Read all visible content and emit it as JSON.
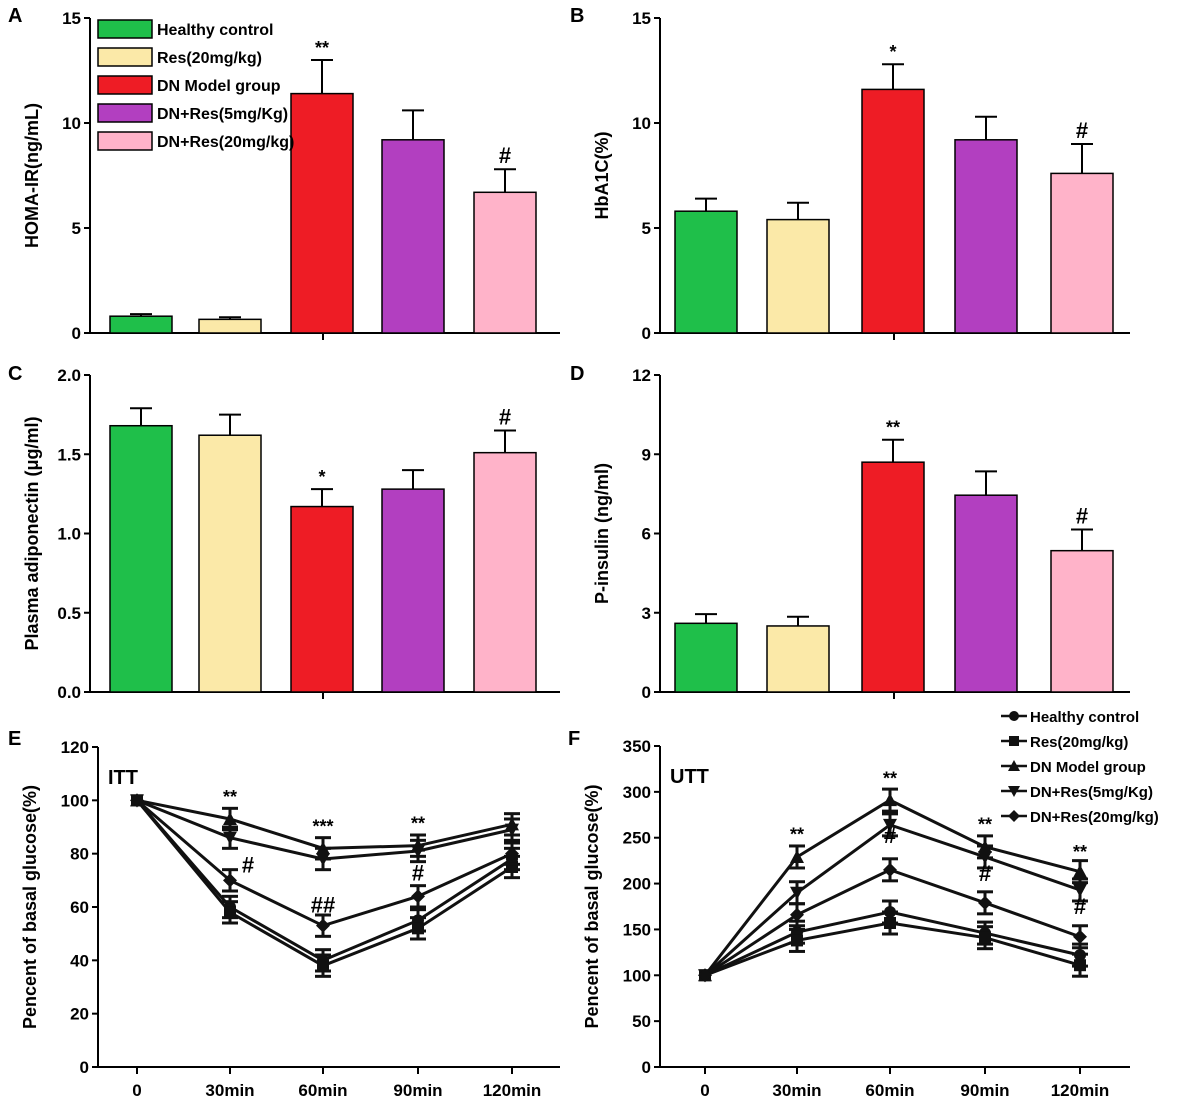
{
  "colors": {
    "healthy": "#1fbf4a",
    "res": "#fbe9a8",
    "model": "#ee1c25",
    "dn5": "#b23fc0",
    "dn20": "#ffb3c9"
  },
  "chart_data": [
    {
      "panel": "A",
      "type": "bar",
      "ylabel": "HOMA-IR(ng/mL)",
      "ylim": [
        0,
        15
      ],
      "yticks": [
        0,
        5,
        10,
        15
      ],
      "categories": [
        "Healthy control",
        "Res(20mg/kg)",
        "DN Model group",
        "DN+Res(5mg/Kg)",
        "DN+Res(20mg/kg)"
      ],
      "values": [
        0.8,
        0.65,
        11.4,
        9.2,
        6.7
      ],
      "errors": [
        0.1,
        0.1,
        1.6,
        1.4,
        1.1
      ],
      "annotations": [
        "",
        "",
        "**",
        "",
        "#"
      ],
      "legend": {
        "placement": "top-left",
        "entries": [
          "Healthy control",
          "Res(20mg/kg)",
          "DN Model group",
          "DN+Res(5mg/Kg)",
          "DN+Res(20mg/kg)"
        ]
      }
    },
    {
      "panel": "B",
      "type": "bar",
      "ylabel": "HbA1C(%)",
      "ylim": [
        0,
        15
      ],
      "yticks": [
        0,
        5,
        10,
        15
      ],
      "values": [
        5.8,
        5.4,
        11.6,
        9.2,
        7.6
      ],
      "errors": [
        0.6,
        0.8,
        1.2,
        1.1,
        1.4
      ],
      "annotations": [
        "",
        "",
        "*",
        "",
        "#"
      ]
    },
    {
      "panel": "C",
      "type": "bar",
      "ylabel": "Plasma adiponectin (μg/ml)",
      "ylim": [
        0,
        2
      ],
      "yticks": [
        "0.0",
        "0.5",
        "1.0",
        "1.5",
        "2.0"
      ],
      "values": [
        1.68,
        1.62,
        1.17,
        1.28,
        1.51
      ],
      "errors": [
        0.11,
        0.13,
        0.11,
        0.12,
        0.14
      ],
      "annotations": [
        "",
        "",
        "*",
        "",
        "#"
      ]
    },
    {
      "panel": "D",
      "type": "bar",
      "ylabel": "P-insulin (ng/ml)",
      "ylim": [
        0,
        12
      ],
      "yticks": [
        0,
        3,
        6,
        9,
        12
      ],
      "values": [
        2.6,
        2.5,
        8.7,
        7.45,
        5.35
      ],
      "errors": [
        0.35,
        0.35,
        0.85,
        0.9,
        0.8
      ],
      "annotations": [
        "",
        "",
        "**",
        "",
        "#"
      ]
    },
    {
      "panel": "E",
      "type": "line",
      "title": "ITT",
      "ylabel": "Pencent of basal glucose(%)",
      "ylim": [
        0,
        120
      ],
      "yticks": [
        0,
        20,
        40,
        60,
        80,
        100,
        120
      ],
      "x": [
        "0",
        "30min",
        "60min",
        "90min",
        "120min"
      ],
      "series": [
        {
          "name": "Healthy control",
          "marker": "circle",
          "values": [
            100,
            60,
            40,
            55,
            78
          ]
        },
        {
          "name": "Res(20mg/kg)",
          "marker": "square",
          "values": [
            100,
            58,
            38,
            52,
            75
          ]
        },
        {
          "name": "DN Model group",
          "marker": "triangle",
          "values": [
            100,
            93,
            82,
            83,
            91
          ]
        },
        {
          "name": "DN+Res(5mg/Kg)",
          "marker": "triangle-down",
          "values": [
            100,
            86,
            78,
            81,
            89
          ]
        },
        {
          "name": "DN+Res(20mg/kg)",
          "marker": "diamond",
          "values": [
            100,
            70,
            53,
            64,
            80
          ]
        }
      ],
      "annotations": [
        {
          "x": "30min",
          "text": "**",
          "y": 99
        },
        {
          "x": "30min",
          "text": "#",
          "y": 73,
          "dx": 1
        },
        {
          "x": "60min",
          "text": "***",
          "y": 88
        },
        {
          "x": "60min",
          "text": "##",
          "y": 58
        },
        {
          "x": "90min",
          "text": "**",
          "y": 89
        },
        {
          "x": "90min",
          "text": "#",
          "y": 70
        }
      ]
    },
    {
      "panel": "F",
      "type": "line",
      "title": "UTT",
      "ylabel": "Pencent of basal glucose(%)",
      "ylim": [
        0,
        350
      ],
      "yticks": [
        0,
        50,
        100,
        150,
        200,
        250,
        300,
        350
      ],
      "x": [
        "0",
        "30min",
        "60min",
        "90min",
        "120min"
      ],
      "series": [
        {
          "name": "Healthy control",
          "marker": "circle",
          "values": [
            100,
            147,
            169,
            146,
            122
          ]
        },
        {
          "name": "Res(20mg/kg)",
          "marker": "square",
          "values": [
            100,
            138,
            157,
            141,
            111
          ]
        },
        {
          "name": "DN Model group",
          "marker": "triangle",
          "values": [
            100,
            229,
            291,
            240,
            213
          ]
        },
        {
          "name": "DN+Res(5mg/Kg)",
          "marker": "triangle-down",
          "values": [
            100,
            190,
            264,
            229,
            193
          ]
        },
        {
          "name": "DN+Res(20mg/kg)",
          "marker": "diamond",
          "values": [
            100,
            166,
            215,
            179,
            142
          ]
        }
      ],
      "annotations": [
        {
          "x": "30min",
          "text": "**",
          "y": 247
        },
        {
          "x": "60min",
          "text": "**",
          "y": 308
        },
        {
          "x": "60min",
          "text": "#",
          "y": 244
        },
        {
          "x": "90min",
          "text": "**",
          "y": 258
        },
        {
          "x": "90min",
          "text": "#",
          "y": 203
        },
        {
          "x": "120min",
          "text": "**",
          "y": 228
        },
        {
          "x": "120min",
          "text": "#",
          "y": 167
        }
      ],
      "legend": {
        "placement": "top-right",
        "entries": [
          "Healthy control",
          "Res(20mg/kg)",
          "DN Model group",
          "DN+Res(5mg/Kg)",
          "DN+Res(20mg/kg)"
        ]
      }
    }
  ]
}
